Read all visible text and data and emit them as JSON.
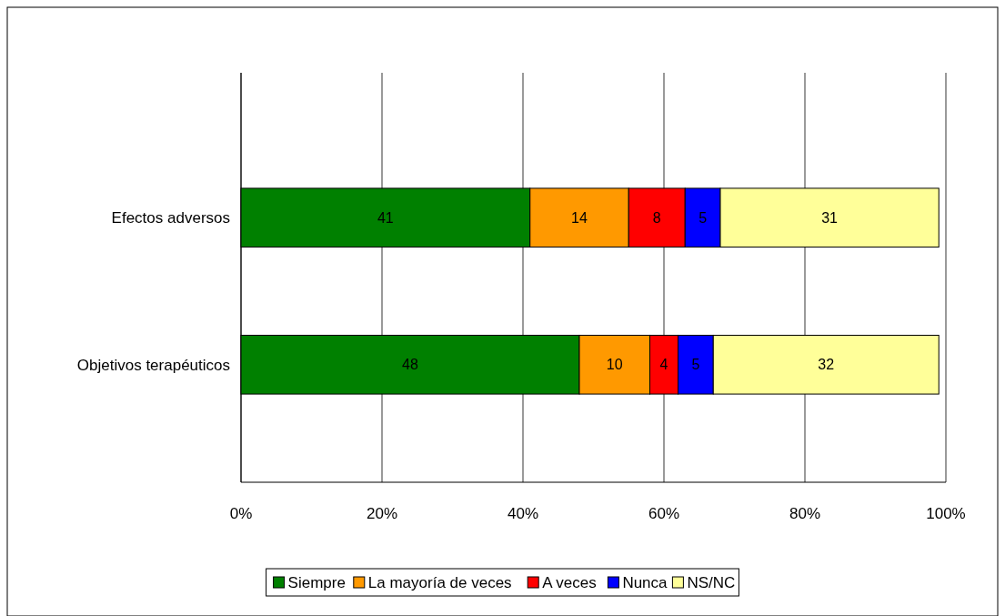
{
  "chart_data": {
    "type": "bar",
    "orientation": "horizontal",
    "stacked": true,
    "categories": [
      "Efectos adversos",
      "Objetivos terapéuticos"
    ],
    "series": [
      {
        "name": "Siempre",
        "color": "#008000",
        "values": [
          41,
          48
        ]
      },
      {
        "name": "La mayoría de veces",
        "color": "#ff9900",
        "values": [
          14,
          10
        ]
      },
      {
        "name": "A veces",
        "color": "#ff0000",
        "values": [
          8,
          4
        ]
      },
      {
        "name": "Nunca",
        "color": "#0000ff",
        "values": [
          5,
          5
        ]
      },
      {
        "name": "NS/NC",
        "color": "#ffff99",
        "values": [
          31,
          32
        ]
      }
    ],
    "xlim": [
      0,
      100
    ],
    "xticks": [
      {
        "value": 0,
        "label": "0%"
      },
      {
        "value": 20,
        "label": "20%"
      },
      {
        "value": 40,
        "label": "40%"
      },
      {
        "value": 60,
        "label": "60%"
      },
      {
        "value": 80,
        "label": "80%"
      },
      {
        "value": 100,
        "label": "100%"
      }
    ],
    "grid": "x",
    "data_labels": true,
    "legend": "bottom"
  }
}
